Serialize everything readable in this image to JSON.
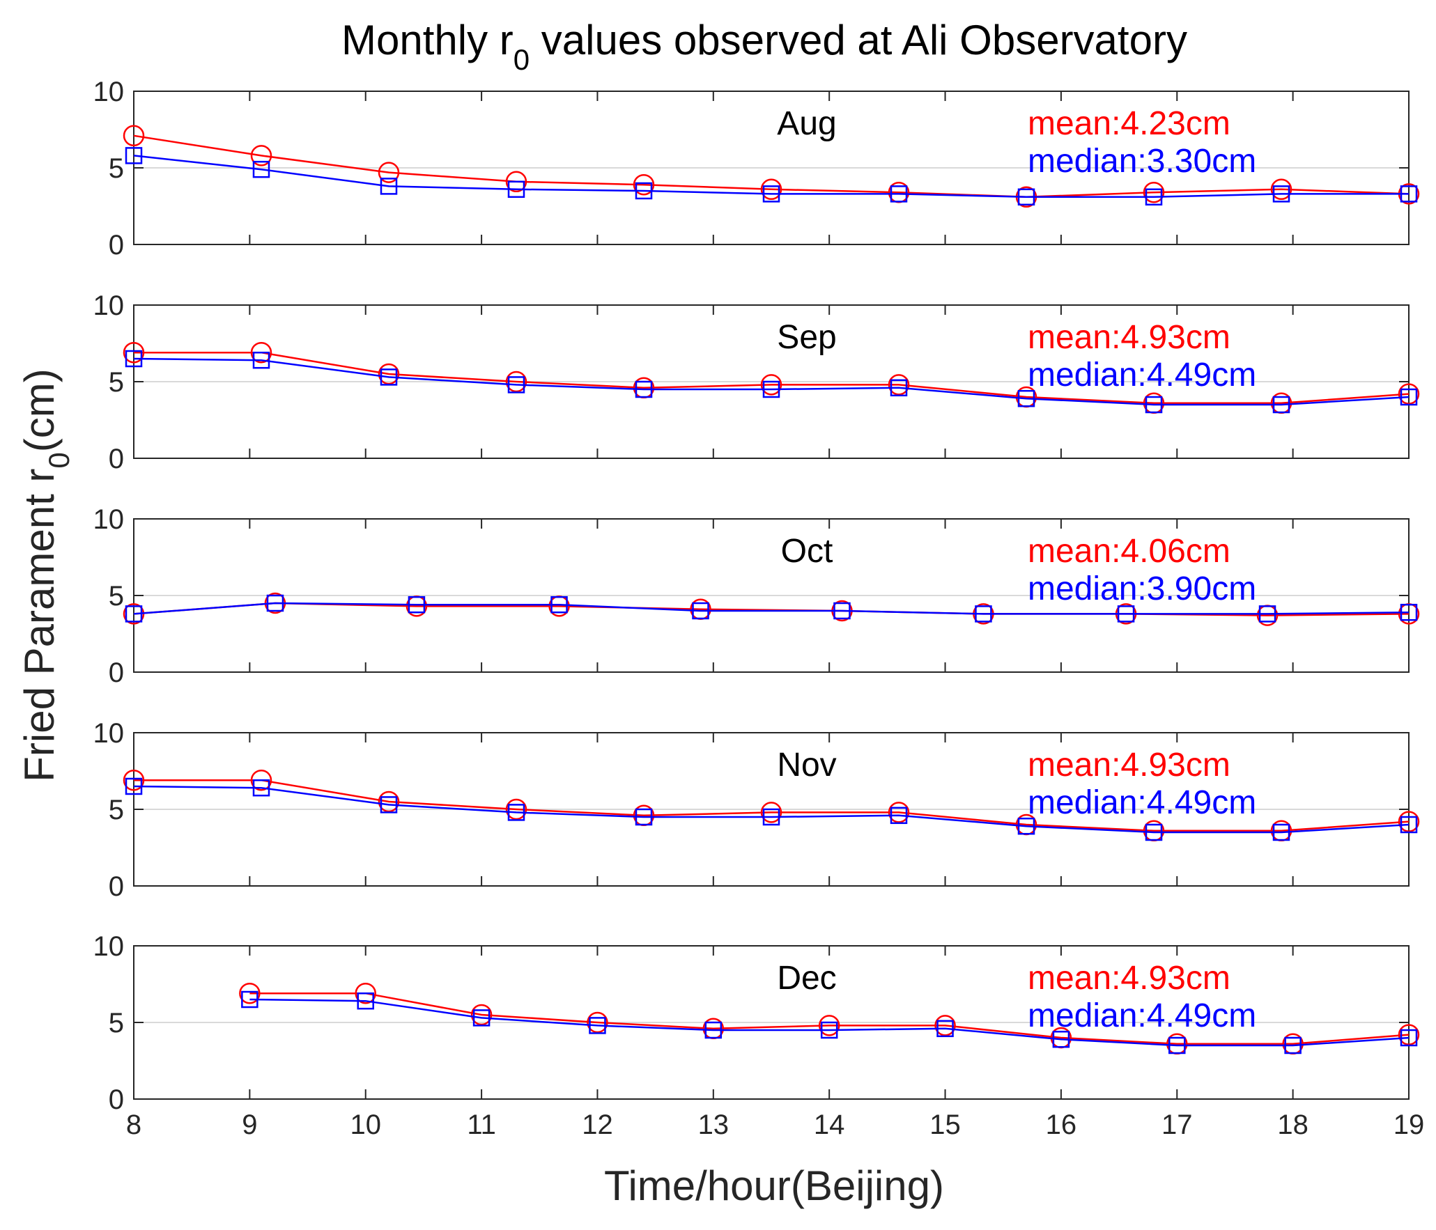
{
  "colors": {
    "mean": "#ff0000",
    "median": "#0000ff",
    "axis": "#262626",
    "grid": "#d9d9d9"
  },
  "chart_data": {
    "type": "line",
    "title": "Monthly r",
    "title_subscript": "0",
    "title_suffix": " values observed at Ali Observatory",
    "ylabel": "Fried Parament r",
    "ylabel_subscript": "0",
    "ylabel_suffix": "(cm)",
    "xlabel": "Time/hour(Beijing)",
    "xlim": [
      8,
      19
    ],
    "xticks": [
      "8",
      "9",
      "10",
      "11",
      "12",
      "13",
      "14",
      "15",
      "16",
      "17",
      "18",
      "19"
    ],
    "ylim": [
      0,
      10
    ],
    "yticks": [
      "0",
      "5",
      "10"
    ],
    "panels": [
      {
        "month": "Aug",
        "mean_label": "mean:4.23cm",
        "median_label": "median:3.30cm",
        "x": [
          8,
          9.1,
          10.2,
          11.3,
          12.4,
          13.5,
          14.6,
          15.7,
          16.8,
          17.9,
          19
        ],
        "series": [
          {
            "name": "mean",
            "values": [
              7.1,
              5.8,
              4.7,
              4.1,
              3.9,
              3.6,
              3.4,
              3.1,
              3.4,
              3.6,
              3.3
            ]
          },
          {
            "name": "median",
            "values": [
              5.8,
              4.9,
              3.8,
              3.6,
              3.5,
              3.3,
              3.3,
              3.1,
              3.1,
              3.3,
              3.3
            ]
          }
        ]
      },
      {
        "month": "Sep",
        "mean_label": "mean:4.93cm",
        "median_label": "median:4.49cm",
        "x": [
          8,
          9.1,
          10.2,
          11.3,
          12.4,
          13.5,
          14.6,
          15.7,
          16.8,
          17.9,
          19
        ],
        "series": [
          {
            "name": "mean",
            "values": [
              6.9,
              6.9,
              5.5,
              5.0,
              4.6,
              4.8,
              4.8,
              4.0,
              3.6,
              3.6,
              4.2
            ]
          },
          {
            "name": "median",
            "values": [
              6.5,
              6.4,
              5.3,
              4.8,
              4.5,
              4.5,
              4.6,
              3.9,
              3.5,
              3.5,
              4.0
            ]
          }
        ]
      },
      {
        "month": "Oct",
        "mean_label": "mean:4.06cm",
        "median_label": "median:3.90cm",
        "x": [
          8,
          9.22,
          10.44,
          11.67,
          12.89,
          14.11,
          15.33,
          16.56,
          17.78,
          19
        ],
        "series": [
          {
            "name": "mean",
            "values": [
              3.8,
              4.5,
              4.3,
              4.3,
              4.1,
              4.0,
              3.8,
              3.8,
              3.7,
              3.8
            ]
          },
          {
            "name": "median",
            "values": [
              3.8,
              4.5,
              4.4,
              4.4,
              4.0,
              4.0,
              3.8,
              3.8,
              3.8,
              3.9
            ]
          }
        ]
      },
      {
        "month": "Nov",
        "mean_label": "mean:4.93cm",
        "median_label": "median:4.49cm",
        "x": [
          8,
          9.1,
          10.2,
          11.3,
          12.4,
          13.5,
          14.6,
          15.7,
          16.8,
          17.9,
          19
        ],
        "series": [
          {
            "name": "mean",
            "values": [
              6.9,
              6.9,
              5.5,
              5.0,
              4.6,
              4.8,
              4.8,
              4.0,
              3.6,
              3.6,
              4.2
            ]
          },
          {
            "name": "median",
            "values": [
              6.5,
              6.4,
              5.3,
              4.8,
              4.5,
              4.5,
              4.6,
              3.9,
              3.5,
              3.5,
              4.0
            ]
          }
        ]
      },
      {
        "month": "Dec",
        "mean_label": "mean:4.93cm",
        "median_label": "median:4.49cm",
        "x": [
          9,
          10,
          11,
          12,
          13,
          14,
          15,
          16,
          17,
          18,
          19
        ],
        "series": [
          {
            "name": "mean",
            "values": [
              6.9,
              6.9,
              5.5,
              5.0,
              4.6,
              4.8,
              4.8,
              4.0,
              3.6,
              3.6,
              4.2
            ]
          },
          {
            "name": "median",
            "values": [
              6.5,
              6.4,
              5.3,
              4.8,
              4.5,
              4.5,
              4.6,
              3.9,
              3.5,
              3.5,
              4.0
            ]
          }
        ]
      }
    ]
  }
}
